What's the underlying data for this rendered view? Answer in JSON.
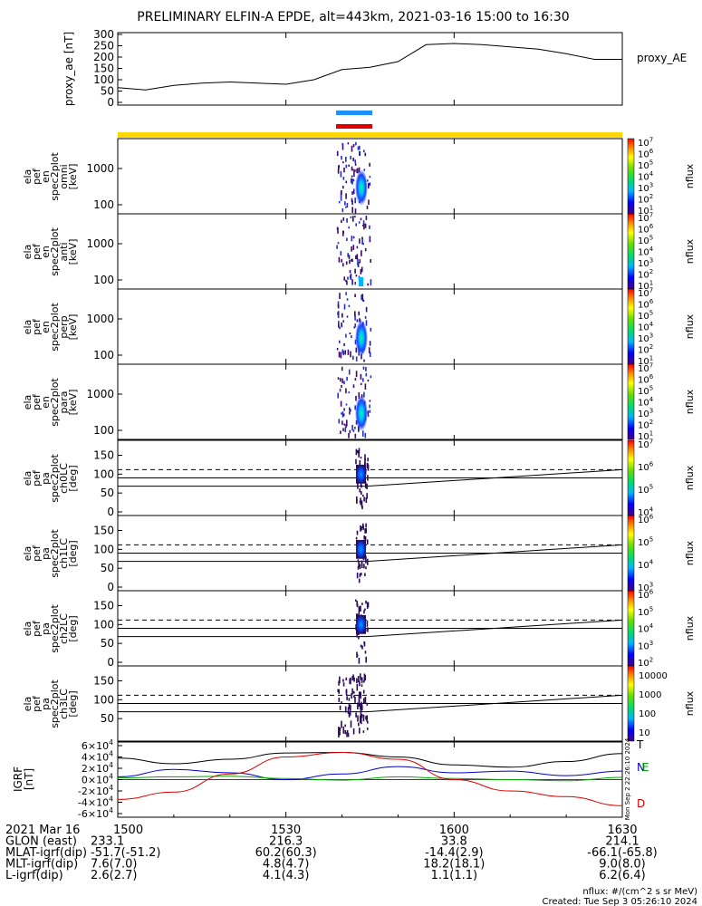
{
  "title": "PRELIMINARY ELFIN-A EPDE, alt=443km, 2021-03-16 15:00 to 16:30",
  "colors": {
    "orbit_bar": "#ffd700",
    "science_blue": "#1e90ff",
    "science_red": "#e00000",
    "igrf_n": "#0000cc",
    "igrf_e": "#00aa00",
    "igrf_d": "#dd0000",
    "igrf_total": "#000000"
  },
  "chart_data": [
    {
      "type": "line",
      "id": "proxy_ae",
      "ylabel": "proxy_ae [nT]",
      "legend": "proxy_AE",
      "yticks": [
        "300",
        "250",
        "200",
        "150",
        "100",
        "50",
        "0"
      ],
      "ylim": [
        0,
        300
      ],
      "xlim": [
        "15:00",
        "16:30"
      ],
      "x_min": [
        0,
        5,
        10,
        15,
        20,
        25,
        30,
        35,
        40,
        45,
        50,
        55,
        60,
        65,
        70,
        75,
        80,
        85,
        90
      ],
      "values": [
        65,
        55,
        75,
        85,
        90,
        85,
        80,
        100,
        145,
        155,
        180,
        255,
        260,
        255,
        245,
        235,
        215,
        190,
        190
      ]
    },
    {
      "type": "heatmap",
      "id": "spec_omni",
      "ylabel": [
        "ela",
        "pef",
        "en",
        "spec2plot",
        "omni",
        "[keV]"
      ],
      "yticks": [
        "1000",
        "100"
      ],
      "scale": "log",
      "colorbar_label": "nflux",
      "colorbar_ticks": [
        "10",
        "10",
        "10",
        "10",
        "10",
        "10",
        "10"
      ],
      "colorbar_exp": [
        "7",
        "6",
        "5",
        "4",
        "3",
        "2",
        "1"
      ]
    },
    {
      "type": "heatmap",
      "id": "spec_anti",
      "ylabel": [
        "ela",
        "pef",
        "en",
        "spec2plot",
        "anti",
        "[keV]"
      ],
      "yticks": [
        "1000",
        "100"
      ],
      "scale": "log",
      "colorbar_label": "nflux",
      "colorbar_ticks": [
        "10",
        "10",
        "10",
        "10",
        "10",
        "10",
        "10"
      ],
      "colorbar_exp": [
        "7",
        "6",
        "5",
        "4",
        "3",
        "2",
        "1"
      ]
    },
    {
      "type": "heatmap",
      "id": "spec_perp",
      "ylabel": [
        "ela",
        "pef",
        "en",
        "spec2plot",
        "perp",
        "[keV]"
      ],
      "yticks": [
        "1000",
        "100"
      ],
      "scale": "log",
      "colorbar_label": "nflux",
      "colorbar_ticks": [
        "10",
        "10",
        "10",
        "10",
        "10",
        "10",
        "10"
      ],
      "colorbar_exp": [
        "7",
        "6",
        "5",
        "4",
        "3",
        "2",
        "1"
      ]
    },
    {
      "type": "heatmap",
      "id": "spec_para",
      "ylabel": [
        "ela",
        "pef",
        "en",
        "spec2plot",
        "para",
        "[keV]"
      ],
      "yticks": [
        "1000",
        "100"
      ],
      "scale": "log",
      "colorbar_label": "nflux",
      "colorbar_ticks": [
        "10",
        "10",
        "10",
        "10",
        "10",
        "10",
        "10"
      ],
      "colorbar_exp": [
        "7",
        "6",
        "5",
        "4",
        "3",
        "2",
        "1"
      ]
    },
    {
      "type": "heatmap",
      "id": "pa_ch0",
      "ylabel": [
        "ela",
        "pef",
        "pa",
        "spec2plot",
        "ch0LC",
        "[deg]"
      ],
      "yticks": [
        "150",
        "100",
        "50",
        "0"
      ],
      "ylim": [
        0,
        180
      ],
      "colorbar_label": "nflux",
      "colorbar_ticks": [
        "10",
        "10",
        "10",
        "10"
      ],
      "colorbar_exp": [
        "7",
        "6",
        "5",
        "4"
      ]
    },
    {
      "type": "heatmap",
      "id": "pa_ch1",
      "ylabel": [
        "ela",
        "pef",
        "pa",
        "spec2plot",
        "ch1LC",
        "[deg]"
      ],
      "yticks": [
        "150",
        "100",
        "50",
        "0"
      ],
      "ylim": [
        0,
        180
      ],
      "colorbar_label": "nflux",
      "colorbar_ticks": [
        "10",
        "10",
        "10",
        "10"
      ],
      "colorbar_exp": [
        "6",
        "5",
        "4",
        "3"
      ]
    },
    {
      "type": "heatmap",
      "id": "pa_ch2",
      "ylabel": [
        "ela",
        "pef",
        "pa",
        "spec2plot",
        "ch2LC",
        "[deg]"
      ],
      "yticks": [
        "150",
        "100",
        "50",
        "0"
      ],
      "ylim": [
        0,
        180
      ],
      "colorbar_label": "nflux",
      "colorbar_ticks": [
        "10",
        "10",
        "10",
        "10",
        "10"
      ],
      "colorbar_exp": [
        "6",
        "5",
        "4",
        "3",
        "2"
      ]
    },
    {
      "type": "heatmap",
      "id": "pa_ch3",
      "ylabel": [
        "ela",
        "pef",
        "pa",
        "spec2plot",
        "ch3LC",
        "[deg]"
      ],
      "yticks": [
        "150",
        "100",
        "50"
      ],
      "ylim": [
        0,
        180
      ],
      "colorbar_label": "nflux",
      "colorbar_plain_ticks": [
        "10000",
        "1000",
        "100",
        "10"
      ]
    },
    {
      "type": "line",
      "id": "igrf",
      "ylabel": [
        "IGRF",
        "[nT]"
      ],
      "ytick_mant": [
        "6",
        "4",
        "2",
        "0",
        "-2",
        "-4",
        "-6"
      ],
      "ytick_exp": "4",
      "ylim": [
        -60000,
        60000
      ],
      "legend": [
        "T",
        "N",
        "E",
        "D"
      ],
      "side_text": "Mon Sep 2 22:26:10 2024",
      "x_min": [
        0,
        10,
        20,
        30,
        40,
        50,
        60,
        70,
        80,
        90
      ],
      "series": [
        {
          "name": "T",
          "values": [
            38000,
            28000,
            36000,
            47000,
            48000,
            40000,
            26000,
            22000,
            32000,
            46000
          ]
        },
        {
          "name": "N",
          "values": [
            5000,
            18000,
            12000,
            0,
            10000,
            23000,
            12000,
            15000,
            7000,
            15000
          ]
        },
        {
          "name": "E",
          "values": [
            3000,
            5000,
            6000,
            2000,
            -1000,
            5000,
            2000,
            0,
            -2000,
            4000
          ]
        },
        {
          "name": "D",
          "values": [
            -35000,
            -22000,
            10000,
            40000,
            48000,
            36000,
            0,
            -20000,
            -30000,
            -46000
          ]
        }
      ]
    }
  ],
  "x_axis": {
    "tick_labels": [
      "1500",
      "1530",
      "1600",
      "1630"
    ],
    "date_label": "2021 Mar 16",
    "rows": [
      {
        "label": "GLON (east)",
        "values": [
          "233.1",
          "216.3",
          "33.8",
          "214.1"
        ]
      },
      {
        "label": "MLAT-igrf(dip)",
        "values": [
          "-51.7(-51.2)",
          "60.2(60.3)",
          "-14.4(2.9)",
          "-66.1(-65.8)"
        ]
      },
      {
        "label": "MLT-igrf(dip)",
        "values": [
          "7.6(7.0)",
          "4.8(4.7)",
          "18.2(18.1)",
          "9.0(8.0)"
        ]
      },
      {
        "label": "L-igrf(dip)",
        "values": [
          "2.6(2.7)",
          "4.1(4.3)",
          "1.1(1.1)",
          "6.2(6.4)"
        ]
      }
    ]
  },
  "footer": {
    "units": "nflux: #/(cm^2 s sr MeV)",
    "created": "Created: Tue Sep  3 05:26:10 2024"
  }
}
